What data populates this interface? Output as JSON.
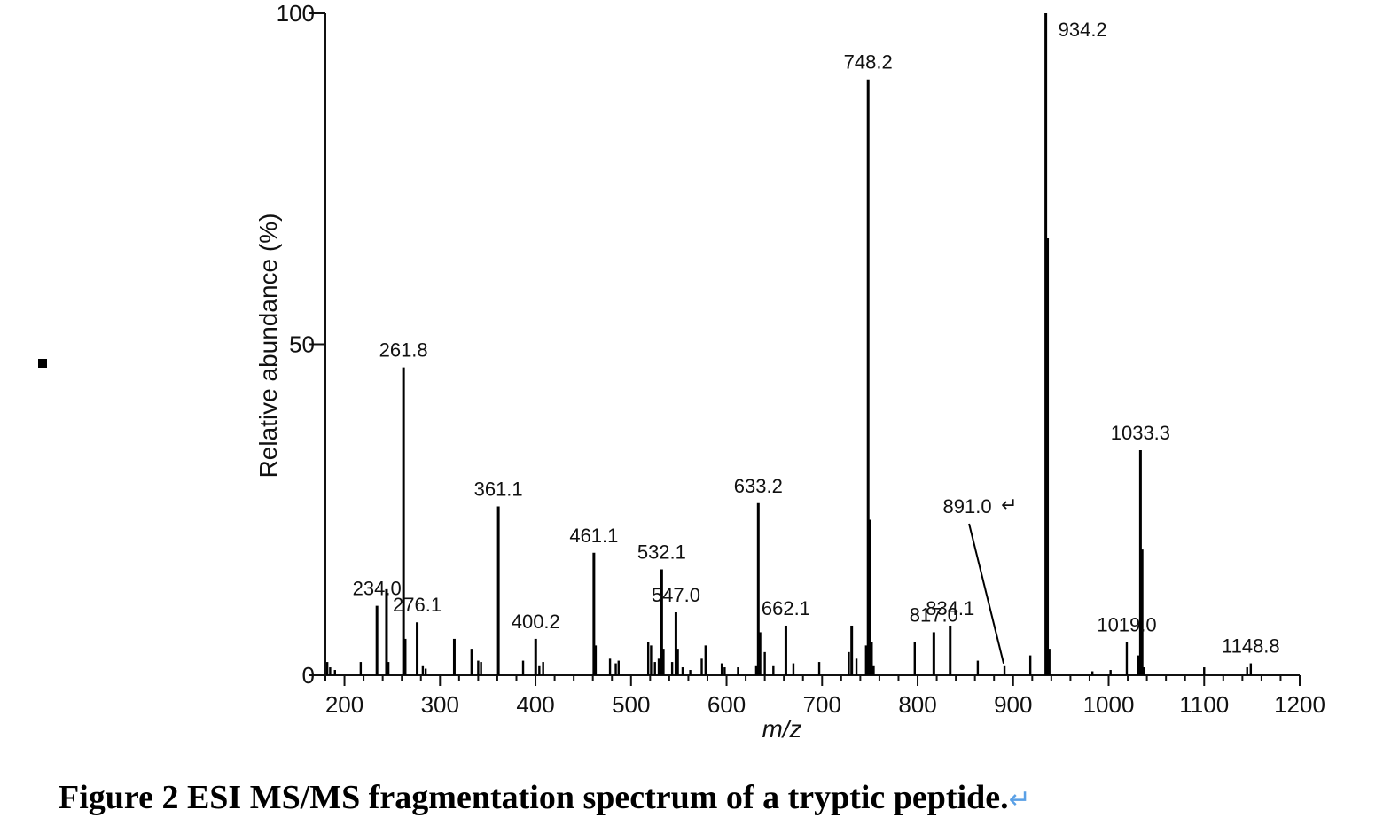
{
  "chart_data": {
    "type": "bar",
    "xlabel": "m/z",
    "ylabel": "Relative abundance (%)",
    "xlim": [
      180,
      1200
    ],
    "ylim": [
      0,
      100
    ],
    "x_ticks": [
      200,
      300,
      400,
      500,
      600,
      700,
      800,
      900,
      1000,
      1100,
      1200
    ],
    "x_tick_labels": [
      "200",
      "300",
      "400",
      "500",
      "600",
      "700",
      "800",
      "900",
      "1000",
      "1100",
      "1200"
    ],
    "y_ticks": [
      0,
      50,
      100
    ],
    "y_tick_labels": [
      "0",
      "50",
      "100"
    ],
    "peaks": [
      {
        "mz": 182,
        "abundance": 2
      },
      {
        "mz": 185,
        "abundance": 1.2
      },
      {
        "mz": 190,
        "abundance": 0.8
      },
      {
        "mz": 217,
        "abundance": 2
      },
      {
        "mz": 234.0,
        "abundance": 10.5
      },
      {
        "mz": 244,
        "abundance": 13
      },
      {
        "mz": 246,
        "abundance": 2
      },
      {
        "mz": 261.8,
        "abundance": 46.5
      },
      {
        "mz": 263.5,
        "abundance": 5.5
      },
      {
        "mz": 276.1,
        "abundance": 8
      },
      {
        "mz": 282,
        "abundance": 1.5
      },
      {
        "mz": 285,
        "abundance": 1
      },
      {
        "mz": 315,
        "abundance": 5.5
      },
      {
        "mz": 333,
        "abundance": 4
      },
      {
        "mz": 340,
        "abundance": 2.2
      },
      {
        "mz": 343,
        "abundance": 2
      },
      {
        "mz": 361.1,
        "abundance": 25.5
      },
      {
        "mz": 387,
        "abundance": 2.2
      },
      {
        "mz": 400.2,
        "abundance": 5.5
      },
      {
        "mz": 404,
        "abundance": 1.5
      },
      {
        "mz": 408,
        "abundance": 2
      },
      {
        "mz": 461.1,
        "abundance": 18.5
      },
      {
        "mz": 463,
        "abundance": 4.5
      },
      {
        "mz": 478,
        "abundance": 2.5
      },
      {
        "mz": 484,
        "abundance": 1.8
      },
      {
        "mz": 487,
        "abundance": 2.2
      },
      {
        "mz": 518,
        "abundance": 5
      },
      {
        "mz": 521,
        "abundance": 4.5
      },
      {
        "mz": 525,
        "abundance": 2
      },
      {
        "mz": 529,
        "abundance": 2.5
      },
      {
        "mz": 532.1,
        "abundance": 16
      },
      {
        "mz": 534,
        "abundance": 4
      },
      {
        "mz": 543,
        "abundance": 2
      },
      {
        "mz": 547.0,
        "abundance": 9.5
      },
      {
        "mz": 549,
        "abundance": 4
      },
      {
        "mz": 554,
        "abundance": 1.2
      },
      {
        "mz": 562,
        "abundance": 0.8
      },
      {
        "mz": 574,
        "abundance": 2.5
      },
      {
        "mz": 578,
        "abundance": 4.5
      },
      {
        "mz": 595,
        "abundance": 1.8
      },
      {
        "mz": 598,
        "abundance": 1.2
      },
      {
        "mz": 612,
        "abundance": 1.2
      },
      {
        "mz": 631,
        "abundance": 1.5
      },
      {
        "mz": 633.2,
        "abundance": 26
      },
      {
        "mz": 635,
        "abundance": 6.5
      },
      {
        "mz": 640,
        "abundance": 3.5
      },
      {
        "mz": 649,
        "abundance": 1.5
      },
      {
        "mz": 662.1,
        "abundance": 7.5
      },
      {
        "mz": 670,
        "abundance": 1.8
      },
      {
        "mz": 697,
        "abundance": 2
      },
      {
        "mz": 728,
        "abundance": 3.5
      },
      {
        "mz": 731,
        "abundance": 7.5
      },
      {
        "mz": 736,
        "abundance": 2.5
      },
      {
        "mz": 746,
        "abundance": 4.5
      },
      {
        "mz": 748.2,
        "abundance": 90
      },
      {
        "mz": 750,
        "abundance": 23.5
      },
      {
        "mz": 752,
        "abundance": 5
      },
      {
        "mz": 754,
        "abundance": 1.5
      },
      {
        "mz": 797,
        "abundance": 5
      },
      {
        "mz": 817.0,
        "abundance": 6.5
      },
      {
        "mz": 834.1,
        "abundance": 7.5
      },
      {
        "mz": 863,
        "abundance": 2.2
      },
      {
        "mz": 891.0,
        "abundance": 1.5
      },
      {
        "mz": 918,
        "abundance": 3
      },
      {
        "mz": 934.2,
        "abundance": 100
      },
      {
        "mz": 936,
        "abundance": 66
      },
      {
        "mz": 938,
        "abundance": 4
      },
      {
        "mz": 983,
        "abundance": 0.6
      },
      {
        "mz": 1002,
        "abundance": 0.8
      },
      {
        "mz": 1019.0,
        "abundance": 5
      },
      {
        "mz": 1031,
        "abundance": 3
      },
      {
        "mz": 1033.3,
        "abundance": 34
      },
      {
        "mz": 1035,
        "abundance": 19
      },
      {
        "mz": 1037,
        "abundance": 1.2
      },
      {
        "mz": 1100,
        "abundance": 1.2
      },
      {
        "mz": 1145,
        "abundance": 1.2
      },
      {
        "mz": 1148.8,
        "abundance": 1.8
      }
    ],
    "peak_labels": [
      {
        "text": "234.0",
        "mz": 234.0
      },
      {
        "text": "261.8",
        "mz": 261.8
      },
      {
        "text": "276.1",
        "mz": 276.1
      },
      {
        "text": "361.1",
        "mz": 361.1
      },
      {
        "text": "400.2",
        "mz": 400.2
      },
      {
        "text": "461.1",
        "mz": 461.1
      },
      {
        "text": "532.1",
        "mz": 532.1
      },
      {
        "text": "547.0",
        "mz": 547.0
      },
      {
        "text": "633.2",
        "mz": 633.2
      },
      {
        "text": "662.1",
        "mz": 662.1
      },
      {
        "text": "748.2",
        "mz": 748.2
      },
      {
        "text": "817.0",
        "mz": 817.0
      },
      {
        "text": "834.1",
        "mz": 834.1
      },
      {
        "text": "891.0",
        "mz": 891.0
      },
      {
        "text": "934.2",
        "mz": 934.2
      },
      {
        "text": "1019.0",
        "mz": 1019.0
      },
      {
        "text": "1033.3",
        "mz": 1033.3
      },
      {
        "text": "1148.8",
        "mz": 1148.8
      }
    ]
  },
  "caption": {
    "text": "Figure 2 ESI MS/MS fragmentation spectrum of a tryptic peptide.",
    "return_mark": "↵"
  },
  "annotation_return_mark": "↵"
}
